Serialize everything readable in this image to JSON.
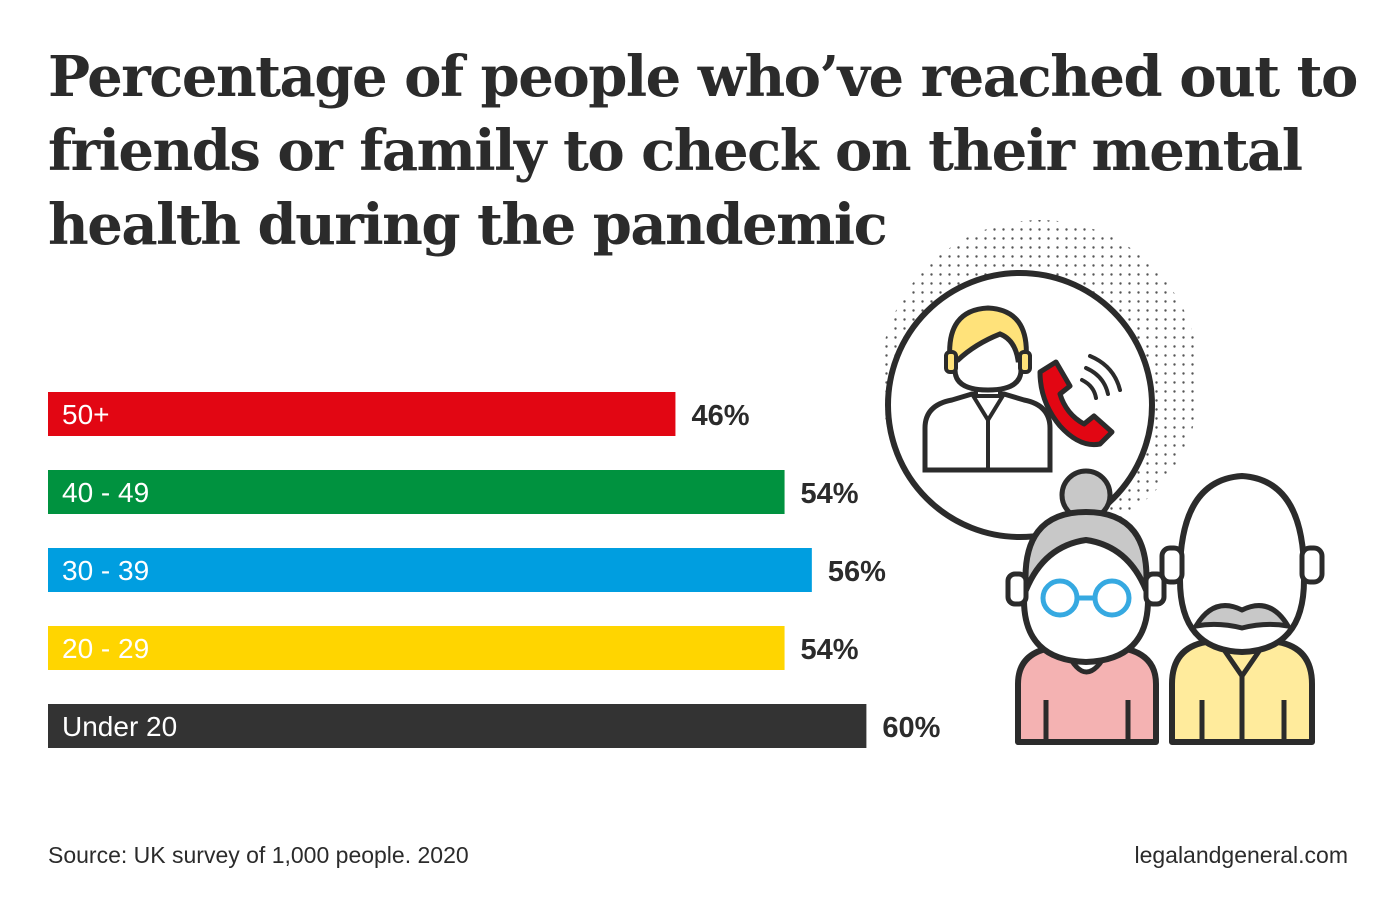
{
  "title_lines": [
    "Percentage of people who’ve reached out to",
    "friends or family to check on their mental",
    "health during the pandemic"
  ],
  "chart_data": {
    "type": "bar",
    "orientation": "horizontal",
    "title": "Percentage of people who’ve reached out to friends or family to check on their mental health during the pandemic",
    "categories": [
      "50+",
      "40 - 49",
      "30 - 39",
      "20 - 29",
      "Under 20"
    ],
    "values": [
      46,
      54,
      56,
      54,
      60
    ],
    "value_labels": [
      "46%",
      "54%",
      "56%",
      "54%",
      "60%"
    ],
    "colors": [
      "#e20613",
      "#00923f",
      "#009ee0",
      "#ffd500",
      "#333333"
    ],
    "unit": "%",
    "xlim": [
      0,
      100
    ],
    "grid": false,
    "legend": "none"
  },
  "source": "Source: UK survey of 1,000 people. 2020",
  "website": "legalandgeneral.com",
  "illustration": {
    "icons": [
      "phone-call-icon",
      "man-avatar-icon",
      "grandmother-icon",
      "grandfather-icon"
    ],
    "colors": {
      "outline": "#2b2b2b",
      "phone": "#e20613",
      "hair_young": "#ffe27a",
      "hair_grey": "#c8c8c8",
      "shirt_pink": "#f4b2b2",
      "shirt_yellow": "#ffeb9c",
      "glasses": "#36a9e1",
      "face": "#ffffff"
    }
  }
}
